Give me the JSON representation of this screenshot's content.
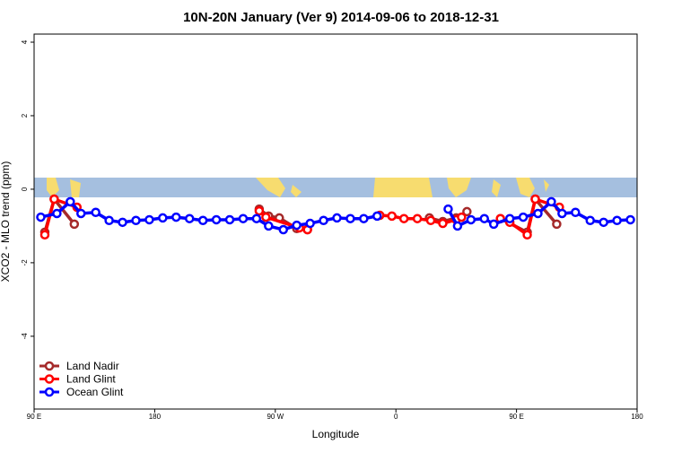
{
  "chart_data": {
    "type": "line",
    "title": "10N-20N January (Ver 9)   2014-09-06 to 2018-12-31",
    "x_label": "Longitude",
    "y_label": "XCO2 - MLO trend (ppm)",
    "xlim": [
      90,
      540
    ],
    "ylim": [
      -5.98,
      4.22
    ],
    "xticks": [
      {
        "value": 90,
        "label": "90 E"
      },
      180,
      {
        "value": 270,
        "label": "90 W"
      },
      0,
      {
        "value": 450,
        "label": "90 E"
      },
      180
    ],
    "yticks": [
      -4,
      -2,
      0,
      2,
      4
    ],
    "legend": "bottom-left",
    "series": [
      {
        "name": "Land Nadir",
        "color": "#a52a2a",
        "x": [
          98,
          105,
          120,
          null,
          258,
          265,
          273,
          286,
          294,
          null,
          385,
          395,
          405,
          413,
          null,
          438,
          458,
          464,
          480
        ],
        "values": [
          -1.17,
          -0.27,
          -0.95,
          null,
          -0.54,
          -0.73,
          -0.78,
          -1.07,
          -1.1,
          null,
          -0.78,
          -0.88,
          -0.78,
          -0.61,
          null,
          -0.8,
          -1.17,
          -0.27,
          -0.95
        ]
      },
      {
        "name": "Land Glint",
        "color": "#ff0000",
        "x": [
          98,
          105,
          122,
          null,
          258,
          263,
          288,
          294,
          null,
          348,
          357,
          366,
          376,
          386,
          395,
          405,
          409,
          null,
          438,
          445,
          458,
          464,
          482
        ],
        "values": [
          -1.24,
          -0.27,
          -0.49,
          null,
          -0.59,
          -0.76,
          -1.05,
          -1.1,
          null,
          -0.71,
          -0.73,
          -0.8,
          -0.8,
          -0.85,
          -0.93,
          -0.83,
          -0.76,
          null,
          -0.8,
          -0.9,
          -1.24,
          -0.27,
          -0.49
        ]
      },
      {
        "name": "Ocean Glint",
        "color": "#0000ff",
        "x": [
          95,
          107,
          117,
          125,
          136,
          146,
          156,
          166,
          176,
          186,
          196,
          206,
          216,
          226,
          236,
          246,
          256,
          265,
          276,
          286,
          296,
          306,
          316,
          326,
          336,
          346,
          null,
          399,
          406,
          416,
          426,
          433,
          445,
          455,
          466,
          476,
          484,
          494,
          505,
          515,
          525,
          535
        ],
        "values": [
          -0.76,
          -0.66,
          -0.34,
          -0.66,
          -0.63,
          -0.85,
          -0.9,
          -0.85,
          -0.83,
          -0.78,
          -0.76,
          -0.8,
          -0.85,
          -0.83,
          -0.83,
          -0.8,
          -0.8,
          -1.0,
          -1.1,
          -0.98,
          -0.93,
          -0.85,
          -0.78,
          -0.8,
          -0.8,
          -0.73,
          null,
          -0.54,
          -1.0,
          -0.83,
          -0.8,
          -0.95,
          -0.8,
          -0.76,
          -0.66,
          -0.34,
          -0.66,
          -0.63,
          -0.85,
          -0.9,
          -0.85,
          -0.83
        ]
      }
    ]
  }
}
